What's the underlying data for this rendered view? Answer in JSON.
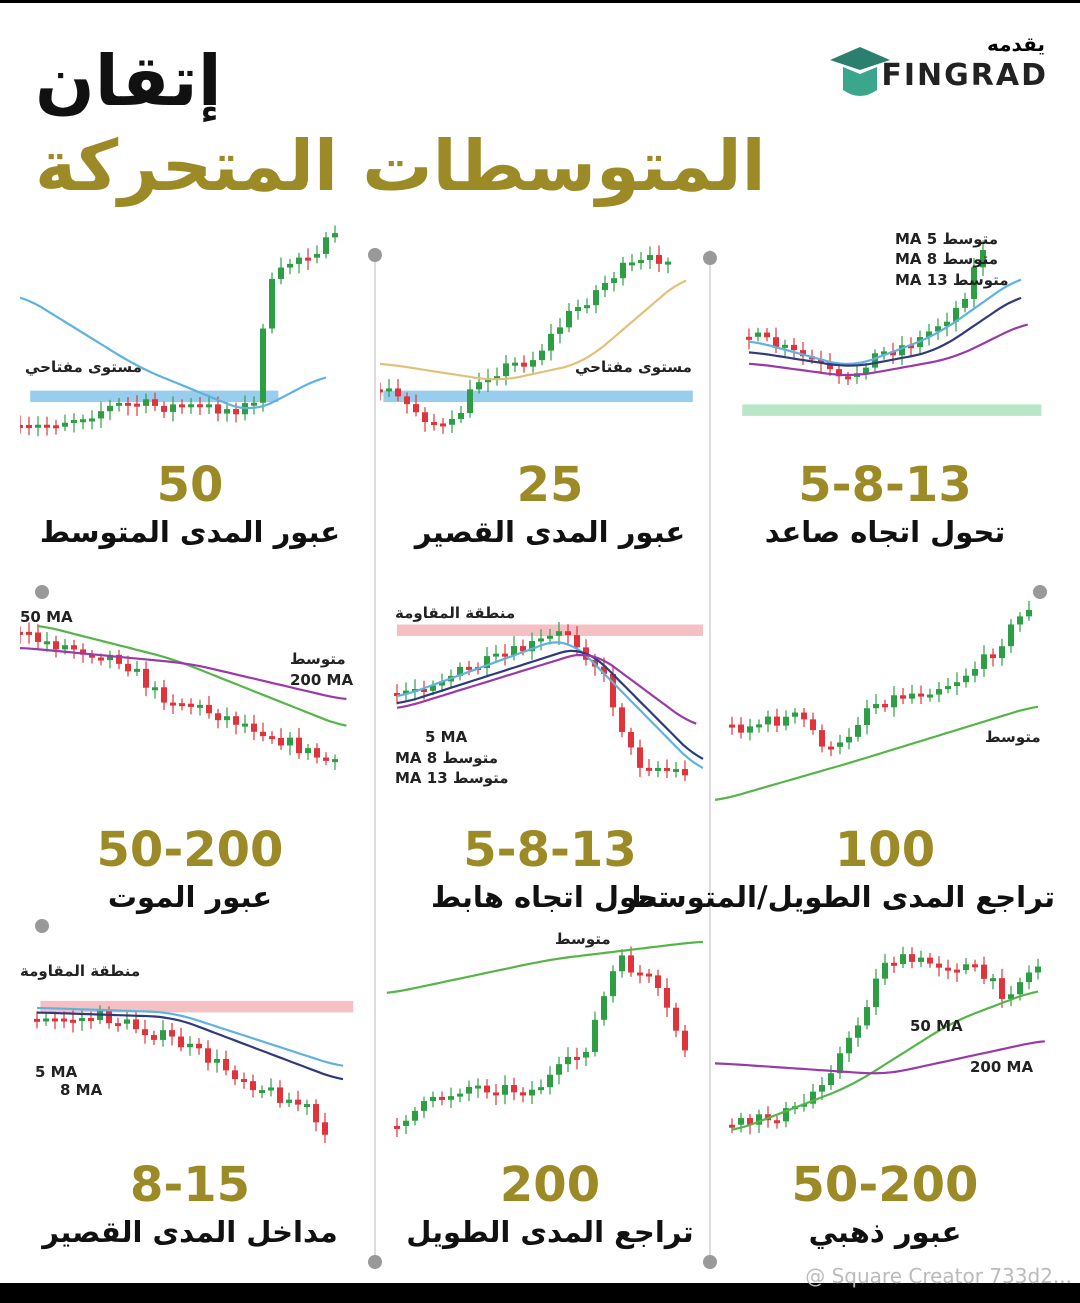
{
  "header": {
    "title_line1": "إتقان",
    "title_line2": "المتوسطات المتحركة",
    "presented_by": "يقدمه",
    "brand": "FINGRAD"
  },
  "panels": [
    {
      "number": "50",
      "caption": "عبور المدى المتوسط",
      "labels": [
        "مستوى مفتاحي"
      ]
    },
    {
      "number": "25",
      "caption": "عبور المدى القصير",
      "labels": [
        "مستوى مفتاحي"
      ]
    },
    {
      "number": "5-8-13",
      "caption": "تحول اتجاه صاعد",
      "labels": [
        "متوسط 5 MA",
        "متوسط 8 MA",
        "متوسط 13 MA"
      ]
    },
    {
      "number": "50-200",
      "caption": "عبور الموت",
      "labels": [
        "50 MA",
        "متوسط",
        "200 MA"
      ]
    },
    {
      "number": "5-8-13",
      "caption": "تحول اتجاه هابط",
      "labels": [
        "منطقة المقاومة",
        "5 MA",
        "متوسط 8 MA",
        "متوسط 13 MA"
      ]
    },
    {
      "number": "100",
      "caption": "تراجع المدى الطويل/المتوسط",
      "labels": [
        "متوسط"
      ]
    },
    {
      "number": "8-15",
      "caption": "مداخل المدى القصير",
      "labels": [
        "منطقة المقاومة",
        "5 MA",
        "8 MA"
      ]
    },
    {
      "number": "200",
      "caption": "تراجع المدى الطويل",
      "labels": [
        "متوسط"
      ]
    },
    {
      "number": "50-200",
      "caption": "عبور ذهبي",
      "labels": [
        "50 MA",
        "200 MA"
      ]
    }
  ],
  "footer": {
    "watermark": "@ Square Creator 733d2..."
  }
}
